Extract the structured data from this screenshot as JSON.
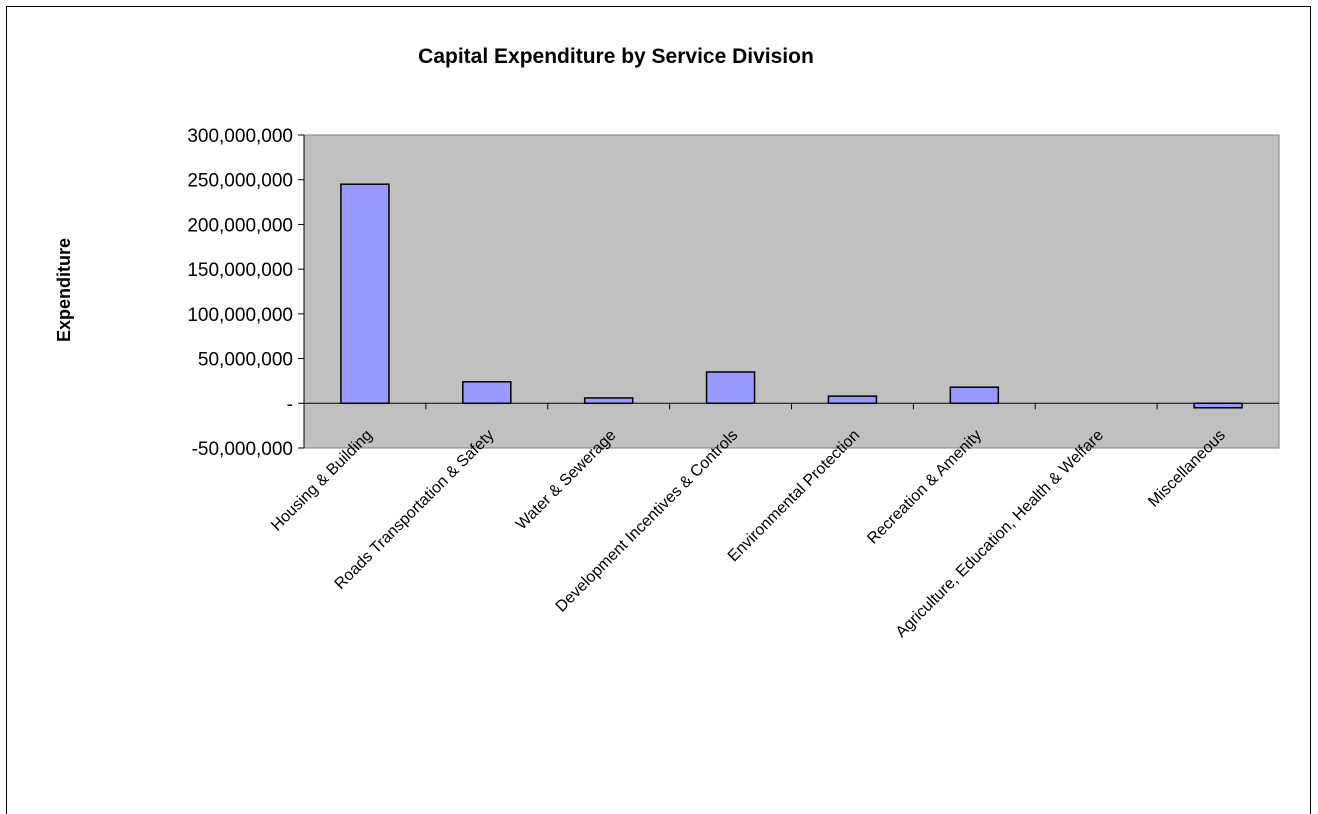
{
  "chart_data": {
    "type": "bar",
    "title": "Capital Expenditure by Service Division",
    "xlabel": "",
    "ylabel": "Expenditure",
    "categories": [
      "Housing & Building",
      "Roads Transportation & Safety",
      "Water & Sewerage",
      "Development Incentives & Controls",
      "Environmental Protection",
      "Recreation & Amenity",
      "Agriculture, Education, Health & Welfare",
      "Miscellaneous"
    ],
    "values": [
      245000000,
      24000000,
      6000000,
      35000000,
      8000000,
      18000000,
      0,
      -5000000
    ],
    "ylim": [
      -50000000,
      300000000
    ],
    "yticks": [
      300000000,
      250000000,
      200000000,
      150000000,
      100000000,
      50000000,
      0,
      -50000000
    ],
    "ytick_labels": [
      "300,000,000",
      "250,000,000",
      "200,000,000",
      "150,000,000",
      "100,000,000",
      "50,000,000",
      "-",
      "-50,000,000"
    ],
    "grid": false,
    "legend": "none",
    "colors": {
      "bar_fill": "#9999ff",
      "bar_stroke": "#000000",
      "plot_background": "#c0c0c0",
      "plot_border": "#808080"
    }
  }
}
